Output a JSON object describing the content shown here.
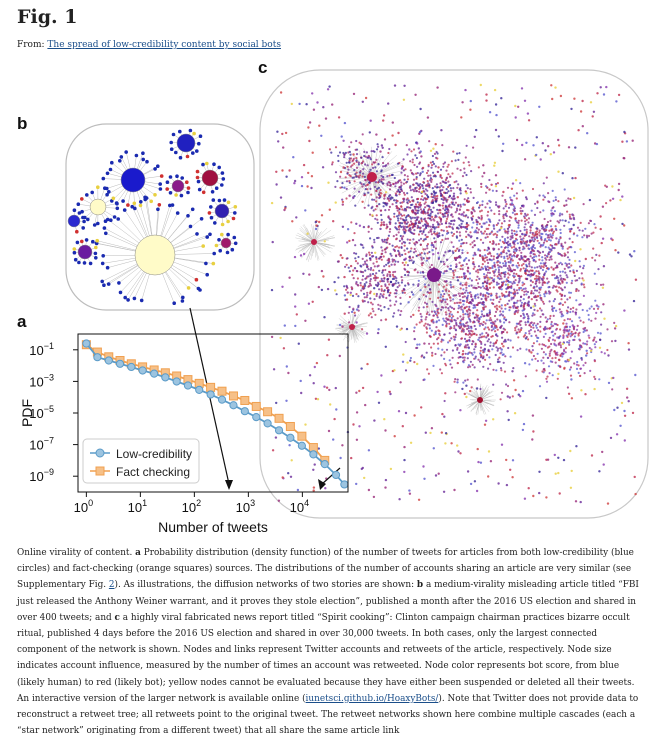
{
  "figure": {
    "title": "Fig. 1",
    "from_prefix": "From: ",
    "from_link": "The spread of low-credibility content by social bots"
  },
  "panels": {
    "a": "a",
    "b": "b",
    "c": "c"
  },
  "chart_data": {
    "type": "line",
    "xscale": "log",
    "yscale": "log",
    "xlabel": "Number of tweets",
    "ylabel": "PDF",
    "xlim": [
      0.7,
      70000
    ],
    "ylim": [
      1e-10,
      1
    ],
    "xticks": [
      {
        "value": 1,
        "base": "10",
        "exp": "0"
      },
      {
        "value": 10,
        "base": "10",
        "exp": "1"
      },
      {
        "value": 100,
        "base": "10",
        "exp": "2"
      },
      {
        "value": 1000,
        "base": "10",
        "exp": "3"
      },
      {
        "value": 10000,
        "base": "10",
        "exp": "4"
      }
    ],
    "yticks": [
      {
        "value": 0.1,
        "base": "10",
        "exp": "−1"
      },
      {
        "value": 0.001,
        "base": "10",
        "exp": "−3"
      },
      {
        "value": 1e-05,
        "base": "10",
        "exp": "−5"
      },
      {
        "value": 1e-07,
        "base": "10",
        "exp": "−7"
      },
      {
        "value": 1e-09,
        "base": "10",
        "exp": "−9"
      }
    ],
    "legend_position": "lower-left",
    "series": [
      {
        "name": "Low-credibility",
        "color": "#5b9bc8",
        "marker": "circle",
        "x": [
          1,
          1.6,
          2.6,
          4.2,
          6.8,
          11,
          18,
          29,
          47,
          76,
          123,
          200,
          325,
          530,
          860,
          1400,
          2270,
          3700,
          6000,
          9800,
          16000,
          26000,
          42000,
          60000
        ],
        "y": [
          0.25,
          0.034,
          0.021,
          0.013,
          0.0082,
          0.0049,
          0.0031,
          0.0018,
          0.00099,
          0.00055,
          0.00029,
          0.00015,
          7e-05,
          3.1e-05,
          1.3e-05,
          5.5e-06,
          2.2e-06,
          8e-07,
          2.7e-07,
          8.5e-08,
          2.4e-08,
          5.8e-09,
          1.2e-09,
          3e-10
        ]
      },
      {
        "name": "Fact checking",
        "color": "#f0a050",
        "marker": "square",
        "x": [
          1,
          1.6,
          2.6,
          4.2,
          6.8,
          11,
          18,
          29,
          47,
          76,
          123,
          200,
          325,
          530,
          860,
          1400,
          2270,
          3700,
          6000,
          9800,
          16000,
          26000
        ],
        "y": [
          0.21,
          0.072,
          0.036,
          0.021,
          0.013,
          0.0083,
          0.0053,
          0.0035,
          0.0022,
          0.0013,
          0.00075,
          0.00042,
          0.00024,
          0.00012,
          6.2e-05,
          2.6e-05,
          1.2e-05,
          4.6e-06,
          1.4e-06,
          3.4e-07,
          6.5e-08,
          1e-08
        ]
      }
    ]
  },
  "caption": {
    "p1": "Online virality of content. ",
    "a_label": "a",
    "p2": " Probability distribution (density function) of the number of tweets for articles from both low-credibility (blue circles) and fact-checking (orange squares) sources. The distributions of the number of accounts sharing an article are very similar (see Supplementary Fig. ",
    "link_fig": "2",
    "p3": "). As illustrations, the diffusion networks of two stories are shown: ",
    "b_label": "b",
    "p4": " a medium-virality misleading article titled “FBI just released the Anthony Weiner warrant, and it proves they stole election”, published a month after the 2016 US election and shared in over 400 tweets; and ",
    "c_label": "c",
    "p5": " a highly viral fabricated news report titled “Spirit cooking”: Clinton campaign chairman practices bizarre occult ritual, published 4 days before the 2016 US election and shared in over 30,000 tweets. In both cases, only the largest connected component of the network is shown. Nodes and links represent Twitter accounts and retweets of the article, respectively. Node size indicates account influence, measured by the number of times an account was retweeted. Node color represents bot score, from blue (likely human) to red (likely bot); yellow nodes cannot be evaluated because they have either been suspended or deleted all their tweets. An interactive version of the larger network is available online (",
    "link_site": "iunetsci.github.io/HoaxyBots/",
    "p6": "). Note that Twitter does not provide data to reconstruct a retweet tree; all retweets point to the original tweet. The retweet networks shown here combine multiple cascades (each a “star network” originating from a different tweet) that all share the same article link"
  }
}
